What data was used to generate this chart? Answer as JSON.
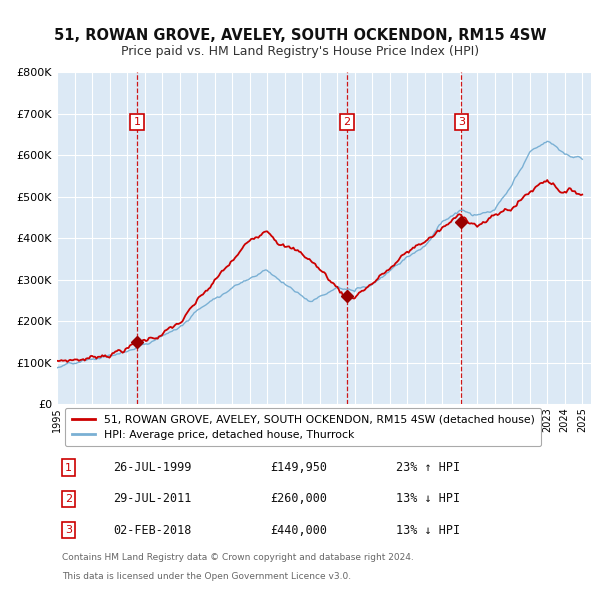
{
  "title": "51, ROWAN GROVE, AVELEY, SOUTH OCKENDON, RM15 4SW",
  "subtitle": "Price paid vs. HM Land Registry's House Price Index (HPI)",
  "title_fontsize": 10.5,
  "subtitle_fontsize": 9,
  "bg_color": "#dce9f5",
  "fig_bg_color": "#ffffff",
  "ylim": [
    0,
    800000
  ],
  "yticks": [
    0,
    100000,
    200000,
    300000,
    400000,
    500000,
    600000,
    700000,
    800000
  ],
  "ytick_labels": [
    "£0",
    "£100K",
    "£200K",
    "£300K",
    "£400K",
    "£500K",
    "£600K",
    "£700K",
    "£800K"
  ],
  "xlim_start": 1995.0,
  "xlim_end": 2025.5,
  "xtick_years": [
    1995,
    1996,
    1997,
    1998,
    1999,
    2000,
    2001,
    2002,
    2003,
    2004,
    2005,
    2006,
    2007,
    2008,
    2009,
    2010,
    2011,
    2012,
    2013,
    2014,
    2015,
    2016,
    2017,
    2018,
    2019,
    2020,
    2021,
    2022,
    2023,
    2024,
    2025
  ],
  "sale_color": "#cc0000",
  "hpi_color": "#7ab0d4",
  "sale_linewidth": 1.3,
  "hpi_linewidth": 1.0,
  "marker_color": "#990000",
  "marker_size": 6,
  "vline_color": "#cc0000",
  "vline_style": "--",
  "vline_alpha": 0.9,
  "annotation_box_color": "#cc0000",
  "annotation_text_color": "#cc0000",
  "grid_color": "#c8d8e8",
  "grid_alpha": 1.0,
  "legend_entries": [
    "51, ROWAN GROVE, AVELEY, SOUTH OCKENDON, RM15 4SW (detached house)",
    "HPI: Average price, detached house, Thurrock"
  ],
  "sale_points": [
    {
      "year": 1999.57,
      "price": 149950,
      "label": "1"
    },
    {
      "year": 2011.57,
      "price": 260000,
      "label": "2"
    },
    {
      "year": 2018.09,
      "price": 440000,
      "label": "3"
    }
  ],
  "table_rows": [
    {
      "num": "1",
      "date": "26-JUL-1999",
      "price": "£149,950",
      "pct": "23% ↑ HPI"
    },
    {
      "num": "2",
      "date": "29-JUL-2011",
      "price": "£260,000",
      "pct": "13% ↓ HPI"
    },
    {
      "num": "3",
      "date": "02-FEB-2018",
      "price": "£440,000",
      "pct": "13% ↓ HPI"
    }
  ],
  "footer1": "Contains HM Land Registry data © Crown copyright and database right 2024.",
  "footer2": "This data is licensed under the Open Government Licence v3.0."
}
